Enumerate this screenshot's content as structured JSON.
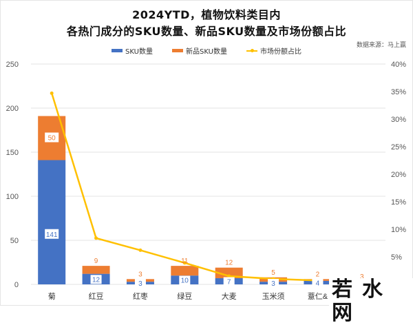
{
  "title_line1": "2024YTD，植物饮料类目内",
  "title_line2": "各热门成分的SKU数量、新品SKU数量及市场份额占比",
  "source": "数据来源：马上赢",
  "legend": [
    {
      "label": "SKU数量",
      "color": "#4472C4",
      "kind": "bar"
    },
    {
      "label": "新品SKU数量",
      "color": "#ED7D31",
      "kind": "bar"
    },
    {
      "label": "市场份额占比",
      "color": "#FFC000",
      "kind": "line"
    }
  ],
  "watermark": "若水网",
  "chart_data": {
    "type": "bar",
    "subtype": "stacked bar + line (secondary axis)",
    "title": "2024YTD，植物饮料类目内 各热门成分的SKU数量、新品SKU数量及市场份额占比",
    "categories": [
      "菊",
      "红豆",
      "红枣",
      "绿豆",
      "大麦",
      "玉米须",
      "薏仁&",
      ""
    ],
    "series": [
      {
        "name": "SKU数量",
        "type": "bar",
        "axis": "left",
        "color": "#4472C4",
        "values": [
          141,
          12,
          3,
          10,
          7,
          3,
          4,
          null
        ]
      },
      {
        "name": "新品SKU数量",
        "type": "bar",
        "axis": "left",
        "color": "#ED7D31",
        "values": [
          50,
          9,
          3,
          11,
          12,
          5,
          2,
          3
        ]
      },
      {
        "name": "市场份额占比",
        "type": "line",
        "axis": "right",
        "color": "#FFC000",
        "values": [
          34.7,
          8.4,
          6.2,
          3.9,
          1.5,
          1.0,
          0.7,
          null
        ]
      }
    ],
    "bar_labels": {
      "SKU数量": [
        "141",
        "12",
        "3",
        "10",
        "7",
        "3",
        "4",
        ""
      ],
      "新品SKU数量": [
        "50",
        "9",
        "3",
        "11",
        "12",
        "5",
        "2",
        "3"
      ]
    },
    "xlabel": "",
    "ylabel": "",
    "ylim": [
      0,
      250
    ],
    "yticks": [
      0,
      50,
      100,
      150,
      200,
      250
    ],
    "y2lim": [
      0,
      40
    ],
    "y2ticks": [
      "5%",
      "10%",
      "15%",
      "20%",
      "25%",
      "30%",
      "35%",
      "40%"
    ],
    "grid": true,
    "legend_position": "top"
  }
}
